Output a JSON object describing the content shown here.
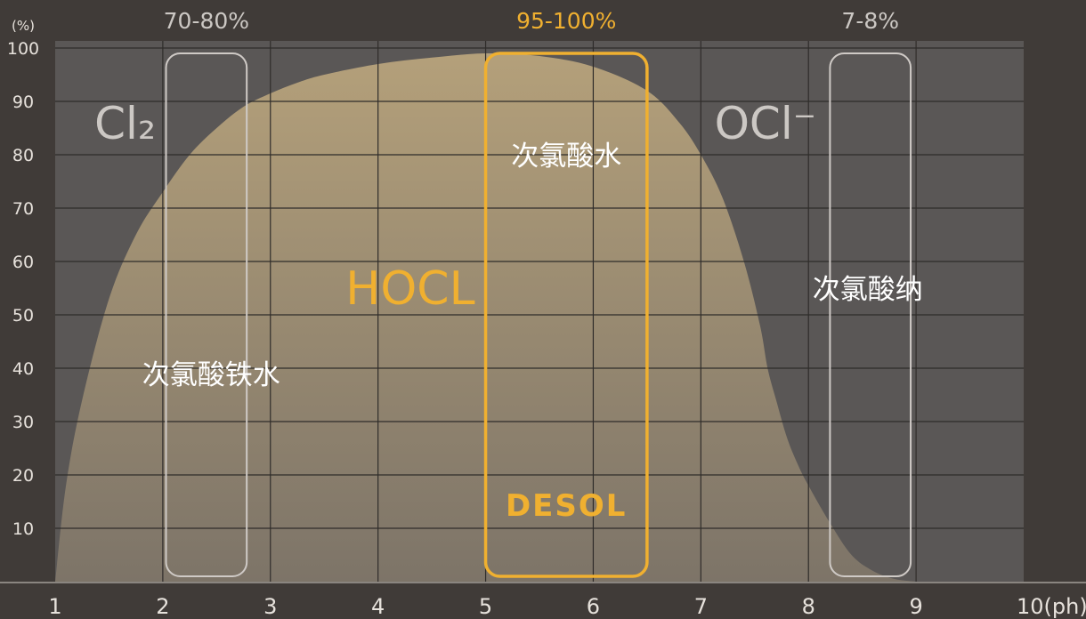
{
  "chart_data": {
    "type": "area",
    "title": "",
    "xlabel": "(ph)",
    "ylabel": "(%)",
    "xlim": [
      1,
      10
    ],
    "ylim": [
      0,
      100
    ],
    "x_ticks": [
      1,
      2,
      3,
      4,
      5,
      6,
      7,
      8,
      9,
      10
    ],
    "y_ticks": [
      10,
      20,
      30,
      40,
      50,
      60,
      70,
      80,
      90,
      100
    ],
    "x_tick_labels": [
      "1",
      "2",
      "3",
      "4",
      "5",
      "6",
      "7",
      "8",
      "9",
      "10(ph)"
    ],
    "y_tick_labels": [
      "10",
      "20",
      "30",
      "40",
      "50",
      "60",
      "70",
      "80",
      "90",
      "100"
    ],
    "y_unit_label": "(%)",
    "grid": true,
    "series": [
      {
        "name": "HOCL",
        "x": [
          1.0,
          1.1,
          1.25,
          1.5,
          1.75,
          2.0,
          2.25,
          2.5,
          2.75,
          3.0,
          3.25,
          3.5,
          4.0,
          4.5,
          5.0,
          5.5,
          6.0,
          6.5,
          6.8,
          7.0,
          7.2,
          7.4,
          7.55,
          7.62,
          7.7,
          7.8,
          7.9,
          8.0,
          8.2,
          8.4,
          8.6,
          8.8,
          9.0
        ],
        "y": [
          0,
          18,
          34,
          53,
          65,
          73,
          80,
          85,
          89,
          91.5,
          93.5,
          95,
          97,
          98.2,
          99,
          98.5,
          96.5,
          92,
          86,
          80,
          72,
          60,
          48,
          40,
          34,
          27,
          22,
          18,
          11,
          5,
          2,
          0.5,
          0
        ]
      }
    ],
    "species_labels": [
      {
        "text": "Cl₂",
        "x": 1.65,
        "y": 86
      },
      {
        "text": "HOCL",
        "x": 4.3,
        "y": 55,
        "highlight": true
      },
      {
        "text": "OCl⁻",
        "x": 7.6,
        "y": 86
      }
    ],
    "annotations": [
      {
        "text": "次氯酸铁水",
        "x": 2.45,
        "y": 39
      },
      {
        "text": "次氯酸水",
        "x": 5.75,
        "y": 80
      },
      {
        "text": "次氯酸纳",
        "x": 8.55,
        "y": 55
      }
    ],
    "ranges": [
      {
        "label": "70-80%",
        "x0": 2.03,
        "x1": 2.78,
        "highlight": false
      },
      {
        "label": "95-100%",
        "x0": 5.0,
        "x1": 6.5,
        "highlight": true
      },
      {
        "label": "7-8%",
        "x0": 8.2,
        "x1": 8.95,
        "highlight": false
      }
    ],
    "logo": "DESOL"
  },
  "colors": {
    "page_bg": "#403b38",
    "plot_bg": "#5a5756",
    "grid": "#2f2c2a",
    "area_top": "#b4a07a",
    "area_bottom": "#7d7468",
    "highlight": "#f0b030",
    "range_box": "#cfcac6",
    "label_grey": "#ccc8c4",
    "text_light": "#ffffff",
    "tick": "#e7e2dc"
  }
}
